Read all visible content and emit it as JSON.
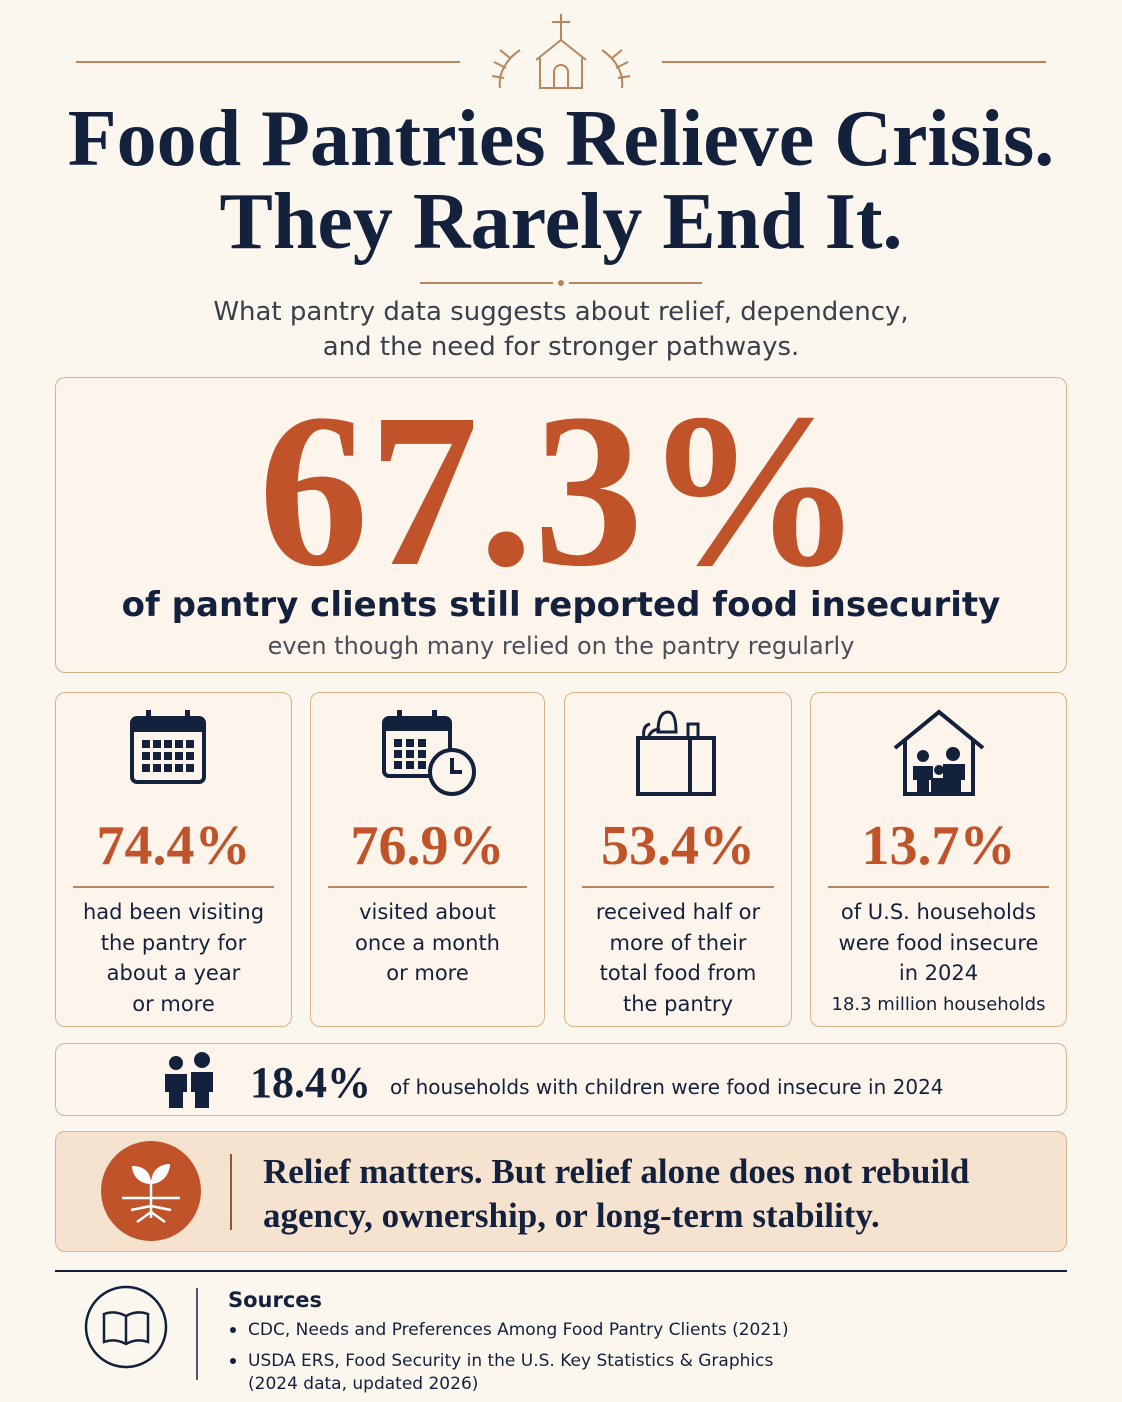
{
  "header": {
    "title_lines": [
      "Food Pantries Relieve Crisis.",
      "They Rarely End It."
    ],
    "subtitle_lines": [
      "What pantry data suggests about relief, dependency,",
      "and the need for stronger pathways."
    ]
  },
  "hero": {
    "stat": "67.3%",
    "headline": "of pantry clients still reported food insecurity",
    "note": "even though many relied on the pantry regularly"
  },
  "cards": [
    {
      "stat": "74.4%",
      "lines": [
        "had been visiting",
        "the pantry for",
        "about a year",
        "or more"
      ]
    },
    {
      "stat": "76.9%",
      "lines": [
        "visited about",
        "once a month",
        "or more"
      ]
    },
    {
      "stat": "53.4%",
      "lines": [
        "received half or",
        "more of their",
        "total food from",
        "the pantry"
      ]
    },
    {
      "stat": "13.7%",
      "lines": [
        "of U.S. households",
        "were food insecure",
        "in 2024"
      ],
      "note": "18.3 million households"
    }
  ],
  "children": {
    "stat": "18.4%",
    "text": "of households with children were food insecure in 2024"
  },
  "message": {
    "lines": [
      "Relief matters. But relief alone does not rebuild",
      "agency, ownership, or long-term stability."
    ]
  },
  "sources": {
    "title": "Sources",
    "items": [
      [
        "CDC, Needs and Preferences Among Food Pantry Clients (2021)"
      ],
      [
        "USDA ERS, Food Security in the U.S. Key Statistics & Graphics",
        "(2024 data, updated 2026)"
      ]
    ]
  }
}
